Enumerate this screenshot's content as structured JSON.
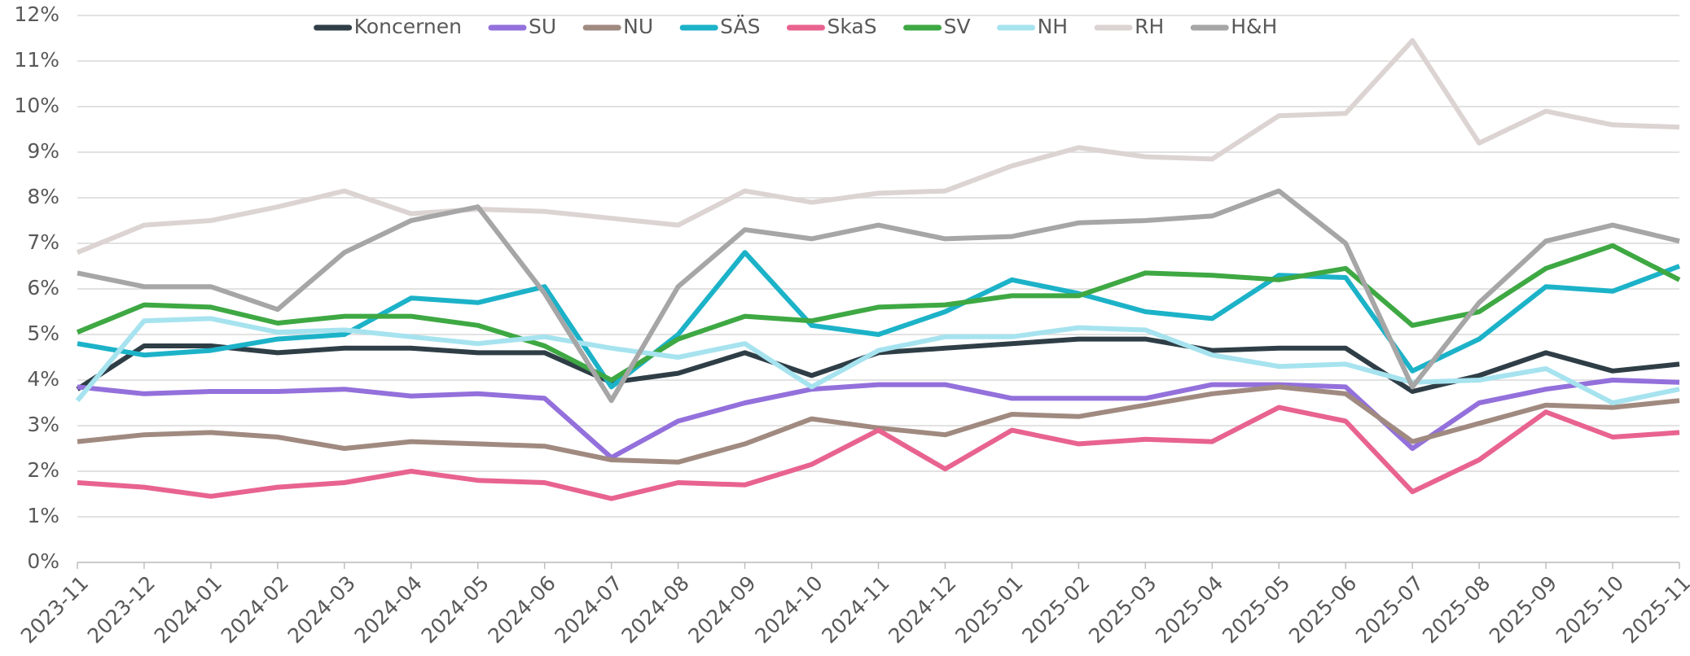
{
  "chart_data": {
    "type": "line",
    "categories": [
      "2023-11",
      "2023-12",
      "2024-01",
      "2024-02",
      "2024-03",
      "2024-04",
      "2024-05",
      "2024-06",
      "2024-07",
      "2024-08",
      "2024-09",
      "2024-10",
      "2024-11",
      "2024-12",
      "2025-01",
      "2025-02",
      "2025-03",
      "2025-04",
      "2025-05",
      "2025-06",
      "2025-07",
      "2025-08",
      "2025-09",
      "2025-10",
      "2025-11"
    ],
    "series": [
      {
        "name": "Koncernen",
        "color": "#2f3e46",
        "values": [
          3.8,
          4.75,
          4.75,
          4.6,
          4.7,
          4.7,
          4.6,
          4.6,
          3.95,
          4.15,
          4.6,
          4.1,
          4.6,
          4.7,
          4.8,
          4.9,
          4.9,
          4.65,
          4.7,
          4.7,
          3.75,
          4.1,
          4.6,
          4.2,
          4.35
        ]
      },
      {
        "name": "SU",
        "color": "#9370db",
        "values": [
          3.85,
          3.7,
          3.75,
          3.75,
          3.8,
          3.65,
          3.7,
          3.6,
          2.3,
          3.1,
          3.5,
          3.8,
          3.9,
          3.9,
          3.6,
          3.6,
          3.6,
          3.9,
          3.9,
          3.85,
          2.5,
          3.5,
          3.8,
          4.0,
          3.95
        ]
      },
      {
        "name": "NU",
        "color": "#a08a80",
        "values": [
          2.65,
          2.8,
          2.85,
          2.75,
          2.5,
          2.65,
          2.6,
          2.55,
          2.25,
          2.2,
          2.6,
          3.15,
          2.95,
          2.8,
          3.25,
          3.2,
          3.45,
          3.7,
          3.85,
          3.7,
          2.65,
          3.05,
          3.45,
          3.4,
          3.55
        ]
      },
      {
        "name": "SÄS",
        "color": "#1cb2c8",
        "values": [
          4.8,
          4.55,
          4.65,
          4.9,
          5.0,
          5.8,
          5.7,
          6.05,
          3.85,
          5.0,
          6.8,
          5.2,
          5.0,
          5.5,
          6.2,
          5.9,
          5.5,
          5.35,
          6.3,
          6.25,
          4.2,
          4.9,
          6.05,
          5.95,
          6.5
        ]
      },
      {
        "name": "SkaS",
        "color": "#e8638f",
        "values": [
          1.75,
          1.65,
          1.45,
          1.65,
          1.75,
          2.0,
          1.8,
          1.75,
          1.4,
          1.75,
          1.7,
          2.15,
          2.9,
          2.05,
          2.9,
          2.6,
          2.7,
          2.65,
          3.4,
          3.1,
          1.55,
          2.25,
          3.3,
          2.75,
          2.85
        ]
      },
      {
        "name": "SV",
        "color": "#3ea843",
        "values": [
          5.05,
          5.65,
          5.6,
          5.25,
          5.4,
          5.4,
          5.2,
          4.75,
          4.0,
          4.9,
          5.4,
          5.3,
          5.6,
          5.65,
          5.85,
          5.85,
          6.35,
          6.3,
          6.2,
          6.45,
          5.2,
          5.5,
          6.45,
          6.95,
          6.2
        ]
      },
      {
        "name": "NH",
        "color": "#a6e3ef",
        "values": [
          3.55,
          5.3,
          5.35,
          5.05,
          5.1,
          4.95,
          4.8,
          4.95,
          4.7,
          4.5,
          4.8,
          3.85,
          4.65,
          4.95,
          4.95,
          5.15,
          5.1,
          4.55,
          4.3,
          4.35,
          3.95,
          4.0,
          4.25,
          3.5,
          3.8
        ]
      },
      {
        "name": "RH",
        "color": "#dcd4d2",
        "values": [
          6.8,
          7.4,
          7.5,
          7.8,
          8.15,
          7.65,
          7.75,
          7.7,
          7.55,
          7.4,
          8.15,
          7.9,
          8.1,
          8.15,
          8.7,
          9.1,
          8.9,
          8.85,
          9.8,
          9.85,
          11.45,
          9.2,
          9.9,
          9.6,
          9.55
        ]
      },
      {
        "name": "H&H",
        "color": "#a6a6a6",
        "values": [
          6.35,
          6.05,
          6.05,
          5.55,
          6.8,
          7.5,
          7.8,
          5.9,
          3.55,
          6.05,
          7.3,
          7.1,
          7.4,
          7.1,
          7.15,
          7.45,
          7.5,
          7.6,
          8.15,
          7.0,
          3.85,
          5.7,
          7.05,
          7.4,
          7.05
        ]
      }
    ],
    "ylim": [
      0,
      12
    ],
    "yticks": [
      {
        "value": 0,
        "label": "0%"
      },
      {
        "value": 1,
        "label": "1%"
      },
      {
        "value": 2,
        "label": "2%"
      },
      {
        "value": 3,
        "label": "3%"
      },
      {
        "value": 4,
        "label": "4%"
      },
      {
        "value": 5,
        "label": "5%"
      },
      {
        "value": 6,
        "label": "6%"
      },
      {
        "value": 7,
        "label": "7%"
      },
      {
        "value": 8,
        "label": "8%"
      },
      {
        "value": 9,
        "label": "9%"
      },
      {
        "value": 10,
        "label": "10%"
      },
      {
        "value": 11,
        "label": "11%"
      },
      {
        "value": 12,
        "label": "12%"
      }
    ],
    "grid": true,
    "legend": "top"
  }
}
